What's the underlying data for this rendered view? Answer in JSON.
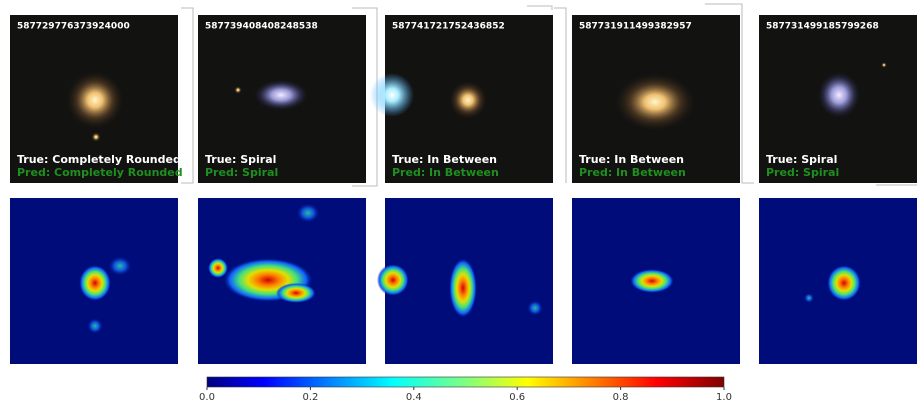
{
  "panels": [
    {
      "id": "587729776373924000",
      "true_label": "True: Completely Rounded",
      "pred_label": "Pred: Completely Rounded"
    },
    {
      "id": "587739408408248538",
      "true_label": "True: Spiral",
      "pred_label": "Pred: Spiral"
    },
    {
      "id": "587741721752436852",
      "true_label": "True: In Between",
      "pred_label": "Pred: In Between"
    },
    {
      "id": "587731911499382957",
      "true_label": "True: In Between",
      "pred_label": "Pred: In Between"
    },
    {
      "id": "587731499185799268",
      "true_label": "True: Spiral",
      "pred_label": "Pred: Spiral"
    }
  ],
  "colorbar": {
    "range": [
      0,
      1
    ],
    "ticks": [
      {
        "value": 0,
        "label": "0.0"
      },
      {
        "value": 0.2,
        "label": "0.2"
      },
      {
        "value": 0.4,
        "label": "0.4"
      },
      {
        "value": 0.6,
        "label": "0.6"
      },
      {
        "value": 0.8,
        "label": "0.8"
      },
      {
        "value": 1,
        "label": "1.0"
      }
    ]
  }
}
